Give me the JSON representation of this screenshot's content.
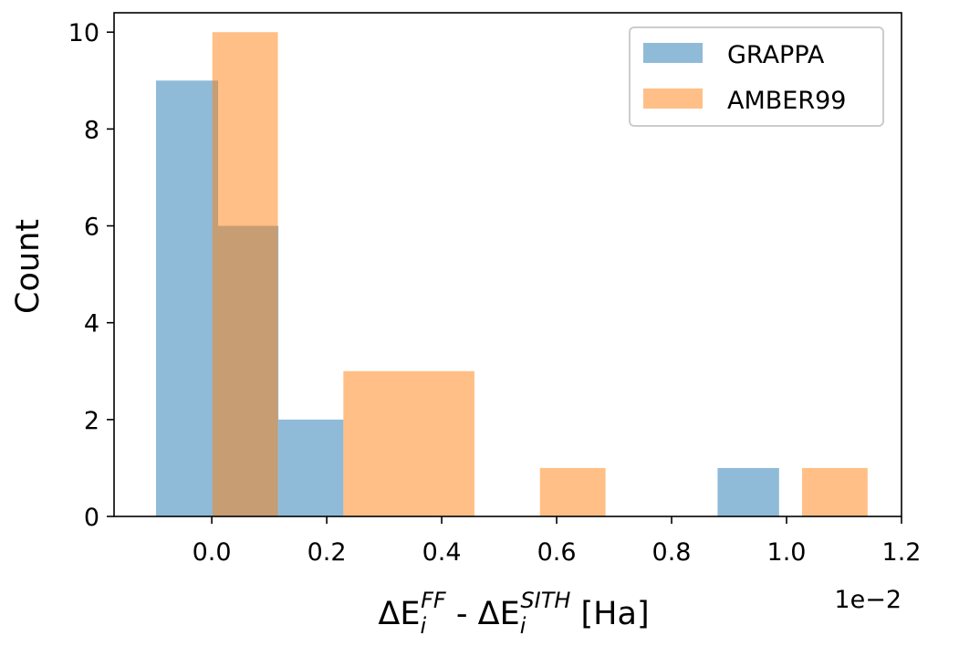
{
  "chart_data": {
    "type": "bar",
    "subtype": "histogram",
    "title": "",
    "xlabel": {
      "delta": "Δ",
      "symbol": "E",
      "subscript": "i",
      "ff_superscript": "FF",
      "minus": " - ",
      "sith_superscript": "SITH",
      "unit": " [Ha]"
    },
    "ylabel": "Count",
    "x_scale_label": "1e−2",
    "xlim": [
      -0.0017,
      0.012
    ],
    "ylim": [
      0,
      10.4
    ],
    "xticks": [
      {
        "value": 0.0,
        "label": "0.0"
      },
      {
        "value": 0.2,
        "label": "0.2"
      },
      {
        "value": 0.4,
        "label": "0.4"
      },
      {
        "value": 0.6,
        "label": "0.6"
      },
      {
        "value": 0.8,
        "label": "0.8"
      },
      {
        "value": 1.0,
        "label": "1.0"
      },
      {
        "value": 1.2,
        "label": "1.2"
      }
    ],
    "yticks": [
      {
        "value": 0,
        "label": "0"
      },
      {
        "value": 2,
        "label": "2"
      },
      {
        "value": 4,
        "label": "4"
      },
      {
        "value": 6,
        "label": "6"
      },
      {
        "value": 8,
        "label": "8"
      },
      {
        "value": 10,
        "label": "10"
      }
    ],
    "legend_position": "top-right",
    "series": [
      {
        "name": "GRAPPA",
        "color": "#1f77b4",
        "opacity": 0.5,
        "bin_edges": [
          -0.00097,
          0.00116,
          0.00229,
          0.00342,
          0.00455,
          0.00568,
          0.00681,
          0.00794,
          0.00907,
          0.0098
        ],
        "bins": [
          {
            "start": -0.00097,
            "end": 0.00011,
            "count": 9
          },
          {
            "start": 0.00011,
            "end": 0.00116,
            "count": 6
          },
          {
            "start": 0.00116,
            "end": 0.00229,
            "count": 2
          },
          {
            "start": 0.0088,
            "end": 0.00987,
            "count": 1
          }
        ]
      },
      {
        "name": "AMBER99",
        "color": "#ff7f0e",
        "opacity": 0.5,
        "bins": [
          {
            "start": 1e-05,
            "end": 0.00115,
            "count": 10
          },
          {
            "start": 0.00229,
            "end": 0.00457,
            "count": 3
          },
          {
            "start": 0.00571,
            "end": 0.00685,
            "count": 1
          },
          {
            "start": 0.01027,
            "end": 0.01141,
            "count": 1
          }
        ]
      }
    ]
  }
}
